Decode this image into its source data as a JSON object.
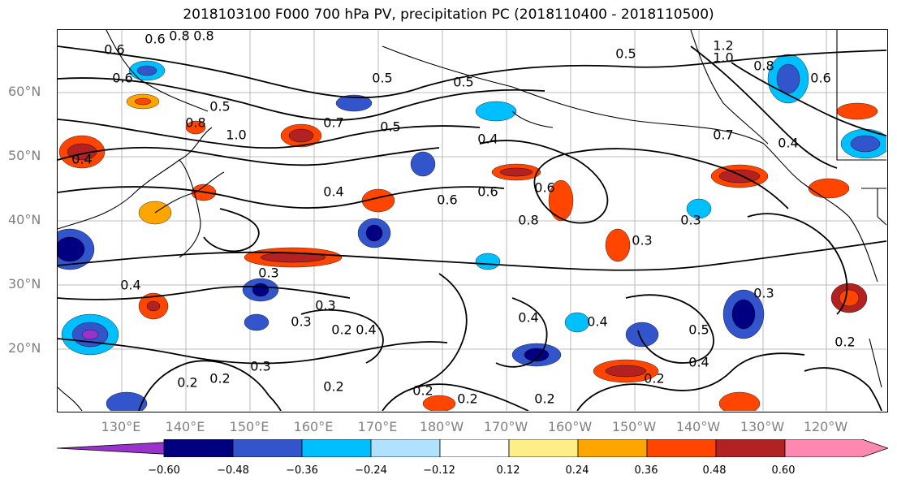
{
  "title": "2018103100 F000 700 hPa PV, precipitation PC (2018110400 - 2018110500)",
  "map": {
    "projection": "cylindrical",
    "extent": {
      "lon_min": 120,
      "lon_max": 250,
      "lat_min": 10,
      "lat_max": 70
    },
    "lat_labels": [
      "60°N",
      "50°N",
      "40°N",
      "30°N",
      "20°N"
    ],
    "lon_labels": [
      "130°E",
      "140°E",
      "150°E",
      "160°E",
      "170°E",
      "180°W",
      "170°W",
      "160°W",
      "150°W",
      "140°W",
      "130°W",
      "120°W"
    ],
    "gridlines": true,
    "coastline_color": "#000000",
    "contour_color": "#000000",
    "contour_labels": [
      "0.6",
      "0.8",
      "0.6",
      "0.8",
      "0.6",
      "0.5",
      "0.8",
      "1.0",
      "0.4",
      "0.7",
      "0.5",
      "0.5",
      "0.4",
      "0.6",
      "0.6",
      "0.8",
      "0.4",
      "0.3",
      "0.4",
      "0.3",
      "0.2",
      "0.2",
      "0.2",
      "0.3",
      "0.2",
      "0.2",
      "0.3",
      "0.4",
      "0.4",
      "0.2",
      "0.2",
      "0.4",
      "0.5",
      "0.4",
      "0.2",
      "0.7",
      "0.4",
      "1.2",
      "1.0",
      "0.8",
      "0.6",
      "0.3",
      "0.3",
      "0.5",
      "0.2",
      "0.3",
      "0.6",
      "0.5"
    ]
  },
  "colorbar": {
    "orientation": "horizontal",
    "extend": "both",
    "colors": [
      "#9933cc",
      "#000080",
      "#3355cc",
      "#00bfff",
      "#b0e2ff",
      "#ffffff",
      "#ffee88",
      "#ffa500",
      "#ff4500",
      "#b22222",
      "#ff88b0"
    ],
    "tick_labels": [
      "−0.60",
      "−0.48",
      "−0.36",
      "−0.24",
      "−0.12",
      "0.12",
      "0.24",
      "0.36",
      "0.48",
      "0.60"
    ]
  }
}
